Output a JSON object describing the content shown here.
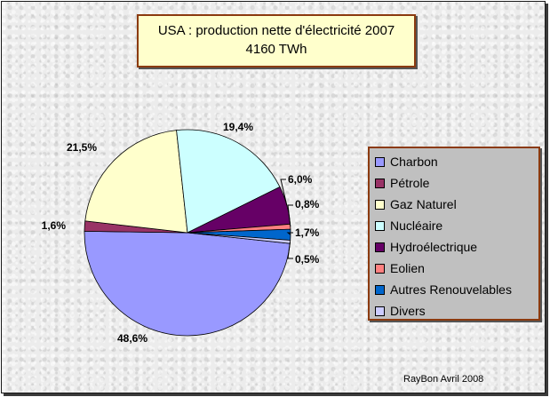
{
  "title": {
    "line1": "USA : production nette d'électricité 2007",
    "line2": "4160 TWh"
  },
  "credit": "RayBon Avril 2008",
  "chart_data": {
    "type": "pie",
    "title": "USA : production nette d'électricité 2007",
    "subtitle": "4160 TWh",
    "legend_position": "right",
    "slices": [
      {
        "name": "Charbon",
        "value": 48.6,
        "label": "48,6%",
        "color": "#9999ff"
      },
      {
        "name": "Pétrole",
        "value": 1.6,
        "label": "1,6%",
        "color": "#993366"
      },
      {
        "name": "Gaz Naturel",
        "value": 21.5,
        "label": "21,5%",
        "color": "#ffffcc"
      },
      {
        "name": "Nucléaire",
        "value": 19.4,
        "label": "19,4%",
        "color": "#ccffff"
      },
      {
        "name": "Hydroélectrique",
        "value": 6.0,
        "label": "6,0%",
        "color": "#660066"
      },
      {
        "name": "Eolien",
        "value": 0.8,
        "label": "0,8%",
        "color": "#ff8080"
      },
      {
        "name": "Autres Renouvelables",
        "value": 1.7,
        "label": "1,7%",
        "color": "#0066cc"
      },
      {
        "name": "Divers",
        "value": 0.5,
        "label": "0,5%",
        "color": "#ccccff"
      }
    ]
  }
}
